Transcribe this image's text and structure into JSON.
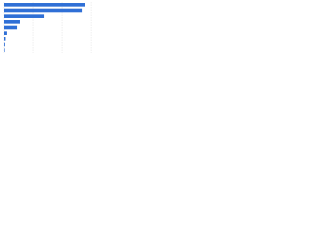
{
  "chart_data": {
    "type": "bar",
    "orientation": "horizontal",
    "categories": [
      null,
      null,
      null,
      null,
      null,
      null,
      null,
      null,
      null
    ],
    "values": [
      2.79,
      2.69,
      1.38,
      0.55,
      0.45,
      0.1,
      0.05,
      0.03,
      0.02
    ],
    "color": "#2f6fd6",
    "xlim": [
      0,
      3.1
    ],
    "xticks": [
      0,
      1,
      2,
      3
    ],
    "grid": true
  }
}
